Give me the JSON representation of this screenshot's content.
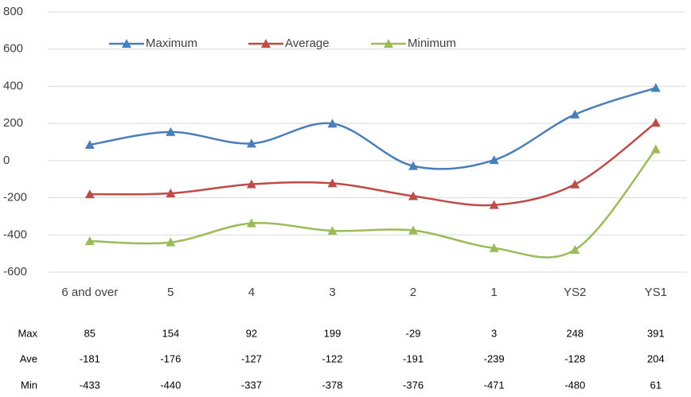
{
  "chart_data": {
    "type": "line",
    "categories": [
      "6 and over",
      "5",
      "4",
      "3",
      "2",
      "1",
      "YS2",
      "YS1"
    ],
    "series": [
      {
        "name": "Maximum",
        "short_name": "Max",
        "color": "#4a7ebb",
        "values": [
          85,
          154,
          92,
          199,
          -29,
          3,
          248,
          391
        ]
      },
      {
        "name": "Average",
        "short_name": "Ave",
        "color": "#be4b48",
        "values": [
          -181,
          -176,
          -127,
          -122,
          -191,
          -239,
          -128,
          204
        ]
      },
      {
        "name": "Minimum",
        "short_name": "Min",
        "color": "#9bbb59",
        "values": [
          -433,
          -440,
          -337,
          -378,
          -376,
          -471,
          -480,
          61
        ]
      }
    ],
    "ylim": [
      -600,
      800
    ],
    "yticks": [
      -600,
      -400,
      -200,
      0,
      200,
      400,
      600,
      800
    ],
    "grid": true,
    "smooth": true
  }
}
